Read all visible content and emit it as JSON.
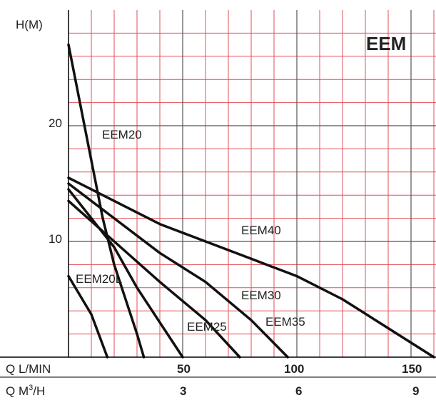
{
  "chart_data": {
    "type": "line",
    "title": "EEM",
    "ylabel": "H(M)",
    "xrows": [
      {
        "label": "Q L/MIN",
        "ticks": [
          "50",
          "100",
          "150"
        ]
      },
      {
        "label_main": "Q M",
        "label_sup": "3",
        "label_tail": "/H",
        "ticks": [
          "3",
          "6",
          "9"
        ]
      }
    ],
    "xlim": [
      0,
      160
    ],
    "ylim": [
      0,
      29
    ],
    "yticks": [
      "10",
      "20"
    ],
    "grid": true,
    "grid_color": "#e0505a",
    "curve_color": "#111111",
    "series": [
      {
        "name": "EEM20",
        "points": [
          [
            0,
            27
          ],
          [
            5,
            22
          ],
          [
            10,
            17
          ],
          [
            15,
            12
          ],
          [
            20,
            8
          ],
          [
            25,
            5
          ],
          [
            30,
            2
          ],
          [
            33,
            0
          ]
        ]
      },
      {
        "name": "EEM40",
        "points": [
          [
            0,
            15.5
          ],
          [
            20,
            13.5
          ],
          [
            40,
            11.5
          ],
          [
            60,
            10
          ],
          [
            80,
            8.5
          ],
          [
            100,
            7
          ],
          [
            120,
            5
          ],
          [
            140,
            2.5
          ],
          [
            160,
            0
          ]
        ]
      },
      {
        "name": "EEM35",
        "points": [
          [
            0,
            15
          ],
          [
            20,
            12
          ],
          [
            40,
            9
          ],
          [
            60,
            6.5
          ],
          [
            80,
            3.2
          ],
          [
            96,
            0
          ]
        ]
      },
      {
        "name": "EEM30",
        "points": [
          [
            0,
            13.5
          ],
          [
            20,
            10
          ],
          [
            40,
            6.5
          ],
          [
            60,
            3.2
          ],
          [
            75,
            0
          ]
        ]
      },
      {
        "name": "EEM25",
        "points": [
          [
            0,
            14.5
          ],
          [
            20,
            9.5
          ],
          [
            30,
            6
          ],
          [
            40,
            3
          ],
          [
            50,
            0
          ]
        ]
      },
      {
        "name": "EEM20L",
        "points": [
          [
            0,
            7
          ],
          [
            10,
            3.7
          ],
          [
            17,
            0
          ]
        ]
      }
    ]
  }
}
